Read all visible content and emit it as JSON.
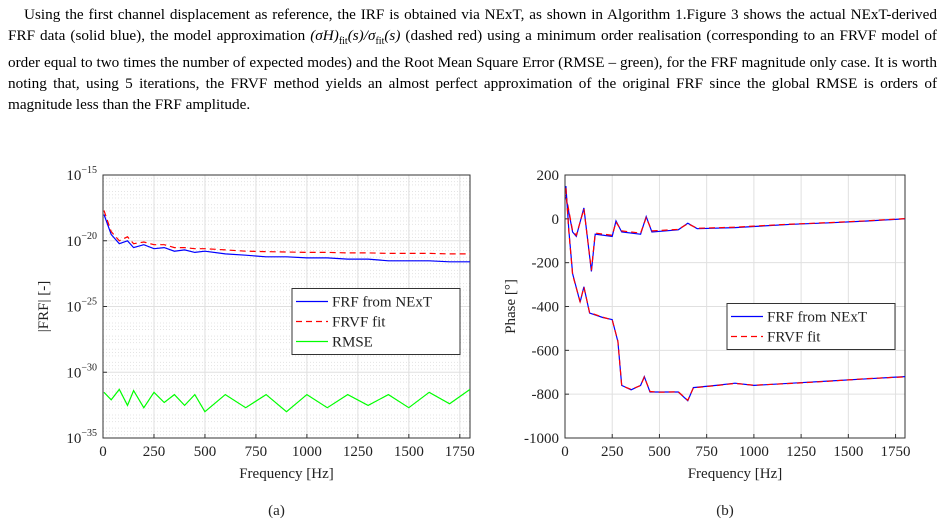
{
  "paragraph": {
    "before": "Using the first channel displacement as reference, the IRF is obtained via NExT, as shown in Algorithm 1.Figure 3 shows the actual NExT-derived FRF data (solid blue), the model approximation ",
    "formula": [
      "(σH)",
      "fit",
      "(s)/σ",
      "fit",
      "(s)"
    ],
    "after": " (dashed red) using a minimum order realisation (corresponding to an FRVF model of order equal to two times the number of expected modes) and the Root Mean Square Error (RMSE – green), for the FRF magnitude only case. It is worth noting that, using 5 iterations, the FRVF method yields an almost perfect approximation of the original FRF since the global RMSE is orders of magnitude less than the FRF amplitude."
  },
  "chart_data": [
    {
      "type": "line",
      "caption": "(a)",
      "xlabel": "Frequency [Hz]",
      "ylabel": "|FRF| [-]",
      "log_y": true,
      "grid": true,
      "legend": "right",
      "xlim": [
        0,
        1800
      ],
      "xticks": [
        0,
        250,
        500,
        750,
        1000,
        1250,
        1500,
        1750
      ],
      "ylim": [
        1e-35,
        1e-15
      ],
      "yticks": [
        {
          "value": 1e-35,
          "label": "10",
          "exponent": "−35"
        },
        {
          "value": 1e-30,
          "label": "10",
          "exponent": "−30"
        },
        {
          "value": 1e-25,
          "label": "10",
          "exponent": "−25"
        },
        {
          "value": 1e-20,
          "label": "10",
          "exponent": "−20"
        },
        {
          "value": 1e-15,
          "label": "10",
          "exponent": "−15"
        }
      ],
      "x": [
        5,
        40,
        80,
        120,
        150,
        200,
        250,
        300,
        350,
        400,
        450,
        500,
        600,
        700,
        800,
        900,
        1000,
        1100,
        1200,
        1300,
        1400,
        1500,
        1600,
        1700,
        1800
      ],
      "series": [
        {
          "name": "FRF from NExT",
          "color": "#0000ff",
          "dash": false,
          "values": [
            1e-18,
            3e-20,
            6e-21,
            1e-20,
            3e-21,
            5e-21,
            2.5e-21,
            3e-21,
            1.6e-21,
            2e-21,
            1.3e-21,
            1.6e-21,
            1e-21,
            8e-22,
            6e-22,
            6e-22,
            5e-22,
            5e-22,
            4e-22,
            4e-22,
            3e-22,
            3e-22,
            3e-22,
            2.5e-22,
            2.5e-22
          ]
        },
        {
          "name": "FRVF fit",
          "color": "#ff0000",
          "dash": true,
          "values": [
            2e-18,
            5e-20,
            1e-20,
            2e-20,
            6e-21,
            8e-21,
            5e-21,
            5e-21,
            3e-21,
            3e-21,
            2.5e-21,
            2.5e-21,
            2e-21,
            1.6e-21,
            1.5e-21,
            1.4e-21,
            1.3e-21,
            1.3e-21,
            1.2e-21,
            1.2e-21,
            1.1e-21,
            1.1e-21,
            1.1e-21,
            1e-21,
            1e-21
          ]
        },
        {
          "name": "RMSE",
          "color": "#00ff00",
          "dash": false,
          "values": [
            3e-32,
            8e-33,
            5e-32,
            3e-33,
            4e-32,
            2e-33,
            3e-32,
            5e-33,
            2e-32,
            3e-33,
            2e-32,
            1e-33,
            2e-32,
            2e-33,
            2e-32,
            1e-33,
            2e-32,
            2e-33,
            2e-32,
            3e-33,
            2e-32,
            2e-33,
            3e-32,
            4e-33,
            5e-32
          ]
        }
      ]
    },
    {
      "type": "line",
      "caption": "(b)",
      "xlabel": "Frequency [Hz]",
      "ylabel": "Phase [°]",
      "log_y": false,
      "grid": true,
      "legend": "right",
      "xlim": [
        0,
        1800
      ],
      "xticks": [
        0,
        250,
        500,
        750,
        1000,
        1250,
        1500,
        1750
      ],
      "ylim": [
        -1000,
        200
      ],
      "yticks": [
        -1000,
        -800,
        -600,
        -400,
        -200,
        0,
        200
      ],
      "series": [
        {
          "name": "FRF from NExT",
          "color": "#0000ff",
          "dash": false,
          "x": [
            5,
            40,
            60,
            100,
            140,
            160,
            250,
            270,
            300,
            400,
            430,
            460,
            600,
            650,
            700,
            900,
            1000,
            1200,
            1400,
            1600,
            1800
          ],
          "values": [
            100,
            -60,
            -80,
            50,
            -240,
            -70,
            -80,
            -10,
            -60,
            -70,
            10,
            -60,
            -50,
            -20,
            -45,
            -40,
            -35,
            -25,
            -18,
            -10,
            0
          ]
        },
        {
          "name": "FRVF fit",
          "color": "#ff0000",
          "dash": true,
          "x": [
            5,
            40,
            60,
            100,
            140,
            160,
            250,
            270,
            300,
            400,
            430,
            460,
            600,
            650,
            700,
            900,
            1000,
            1200,
            1400,
            1600,
            1800
          ],
          "values": [
            110,
            -55,
            -75,
            45,
            -235,
            -65,
            -75,
            -15,
            -55,
            -65,
            5,
            -55,
            -48,
            -22,
            -43,
            -38,
            -33,
            -24,
            -17,
            -9,
            1
          ]
        },
        {
          "color": "#0000ff",
          "dash": false,
          "x": [
            5,
            20,
            40,
            80,
            100,
            130,
            200,
            250,
            280,
            300,
            350,
            400,
            420,
            450,
            500,
            600,
            650,
            680,
            800,
            900,
            1000,
            1200,
            1400,
            1600,
            1800
          ],
          "values": [
            150,
            -50,
            -250,
            -380,
            -310,
            -430,
            -450,
            -460,
            -560,
            -760,
            -780,
            -760,
            -720,
            -790,
            -790,
            -790,
            -830,
            -770,
            -760,
            -750,
            -760,
            -750,
            -740,
            -730,
            -720
          ]
        },
        {
          "color": "#ff0000",
          "dash": true,
          "x": [
            5,
            20,
            40,
            80,
            100,
            130,
            200,
            250,
            280,
            300,
            350,
            400,
            420,
            450,
            500,
            600,
            650,
            680,
            800,
            900,
            1000,
            1200,
            1400,
            1600,
            1800
          ],
          "values": [
            140,
            -55,
            -255,
            -378,
            -312,
            -428,
            -449,
            -461,
            -558,
            -762,
            -778,
            -761,
            -722,
            -788,
            -791,
            -789,
            -828,
            -771,
            -761,
            -751,
            -759,
            -751,
            -741,
            -729,
            -721
          ]
        }
      ]
    }
  ]
}
